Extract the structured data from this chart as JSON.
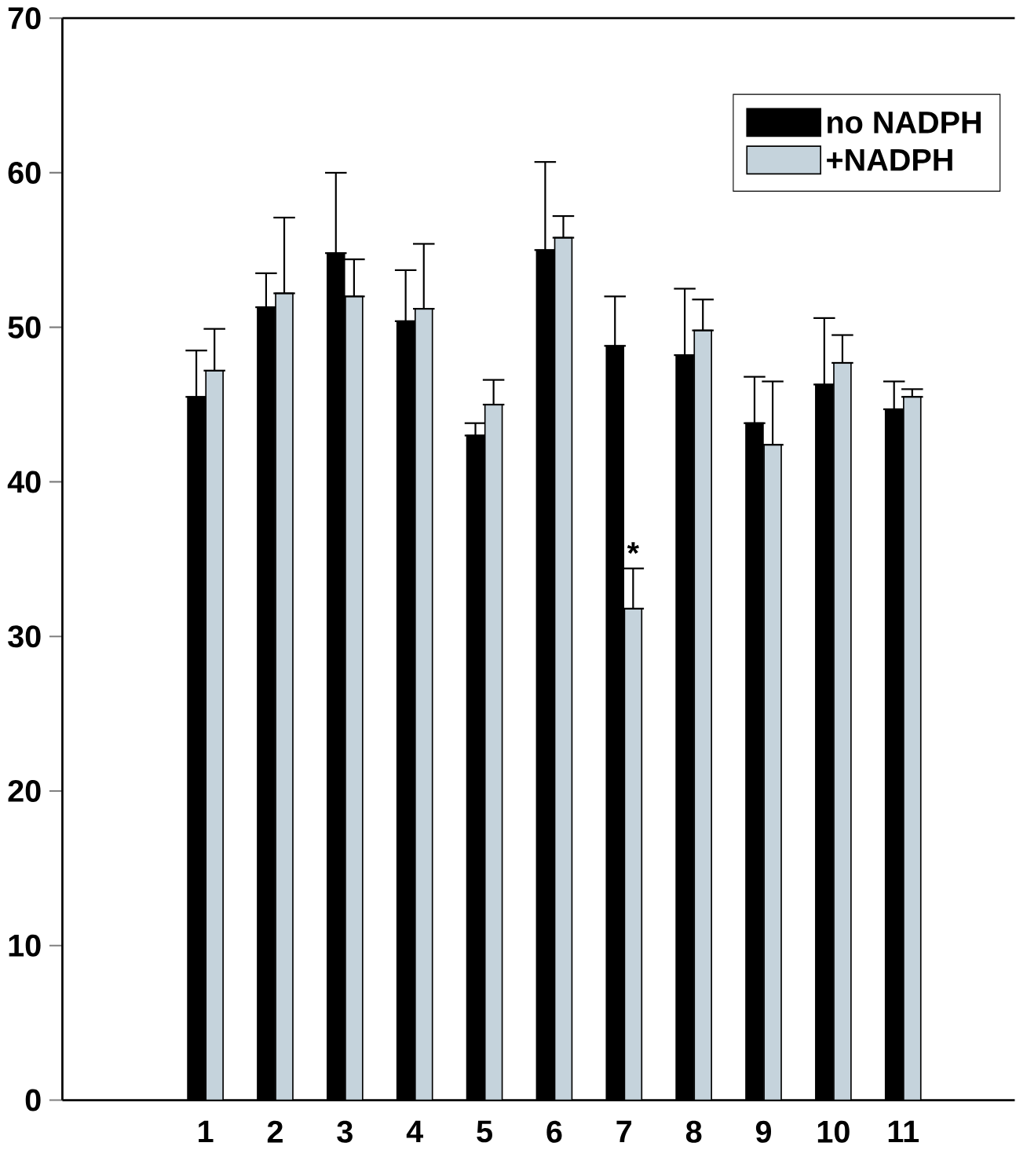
{
  "chart_data": {
    "type": "bar",
    "categories": [
      "1",
      "2",
      "3",
      "4",
      "5",
      "6",
      "7",
      "8",
      "9",
      "10",
      "11"
    ],
    "series": [
      {
        "name": "no NADPH",
        "color": "#000000",
        "values": [
          45.5,
          51.3,
          54.8,
          50.4,
          43.0,
          55.0,
          48.8,
          48.2,
          43.8,
          46.3,
          44.7
        ],
        "errors": [
          [
            45.5,
            48.5
          ],
          [
            51.3,
            53.5
          ],
          [
            54.8,
            60.0
          ],
          [
            50.4,
            53.7
          ],
          [
            43.0,
            43.8
          ],
          [
            55.0,
            60.7
          ],
          [
            48.8,
            52.0
          ],
          [
            48.2,
            52.5
          ],
          [
            43.8,
            46.8
          ],
          [
            46.3,
            50.6
          ],
          [
            44.7,
            46.5
          ]
        ]
      },
      {
        "name": "+NADPH",
        "color": "#c5d3dc",
        "values": [
          47.2,
          52.2,
          52.0,
          51.2,
          45.0,
          55.8,
          31.8,
          49.8,
          42.4,
          47.7,
          45.5
        ],
        "errors": [
          [
            47.2,
            49.9
          ],
          [
            52.2,
            57.1
          ],
          [
            52.0,
            54.4
          ],
          [
            51.2,
            55.4
          ],
          [
            45.0,
            46.6
          ],
          [
            55.8,
            57.2
          ],
          [
            31.8,
            34.4
          ],
          [
            49.8,
            51.8
          ],
          [
            42.4,
            46.5
          ],
          [
            47.7,
            49.5
          ],
          [
            45.5,
            46.0
          ]
        ]
      }
    ],
    "ylim": [
      0,
      70
    ],
    "yticks": [
      0,
      10,
      20,
      30,
      40,
      50,
      60,
      70
    ],
    "legend": "top right",
    "annotations": [
      {
        "text": "*",
        "x": "7",
        "y": 34.4
      }
    ]
  }
}
